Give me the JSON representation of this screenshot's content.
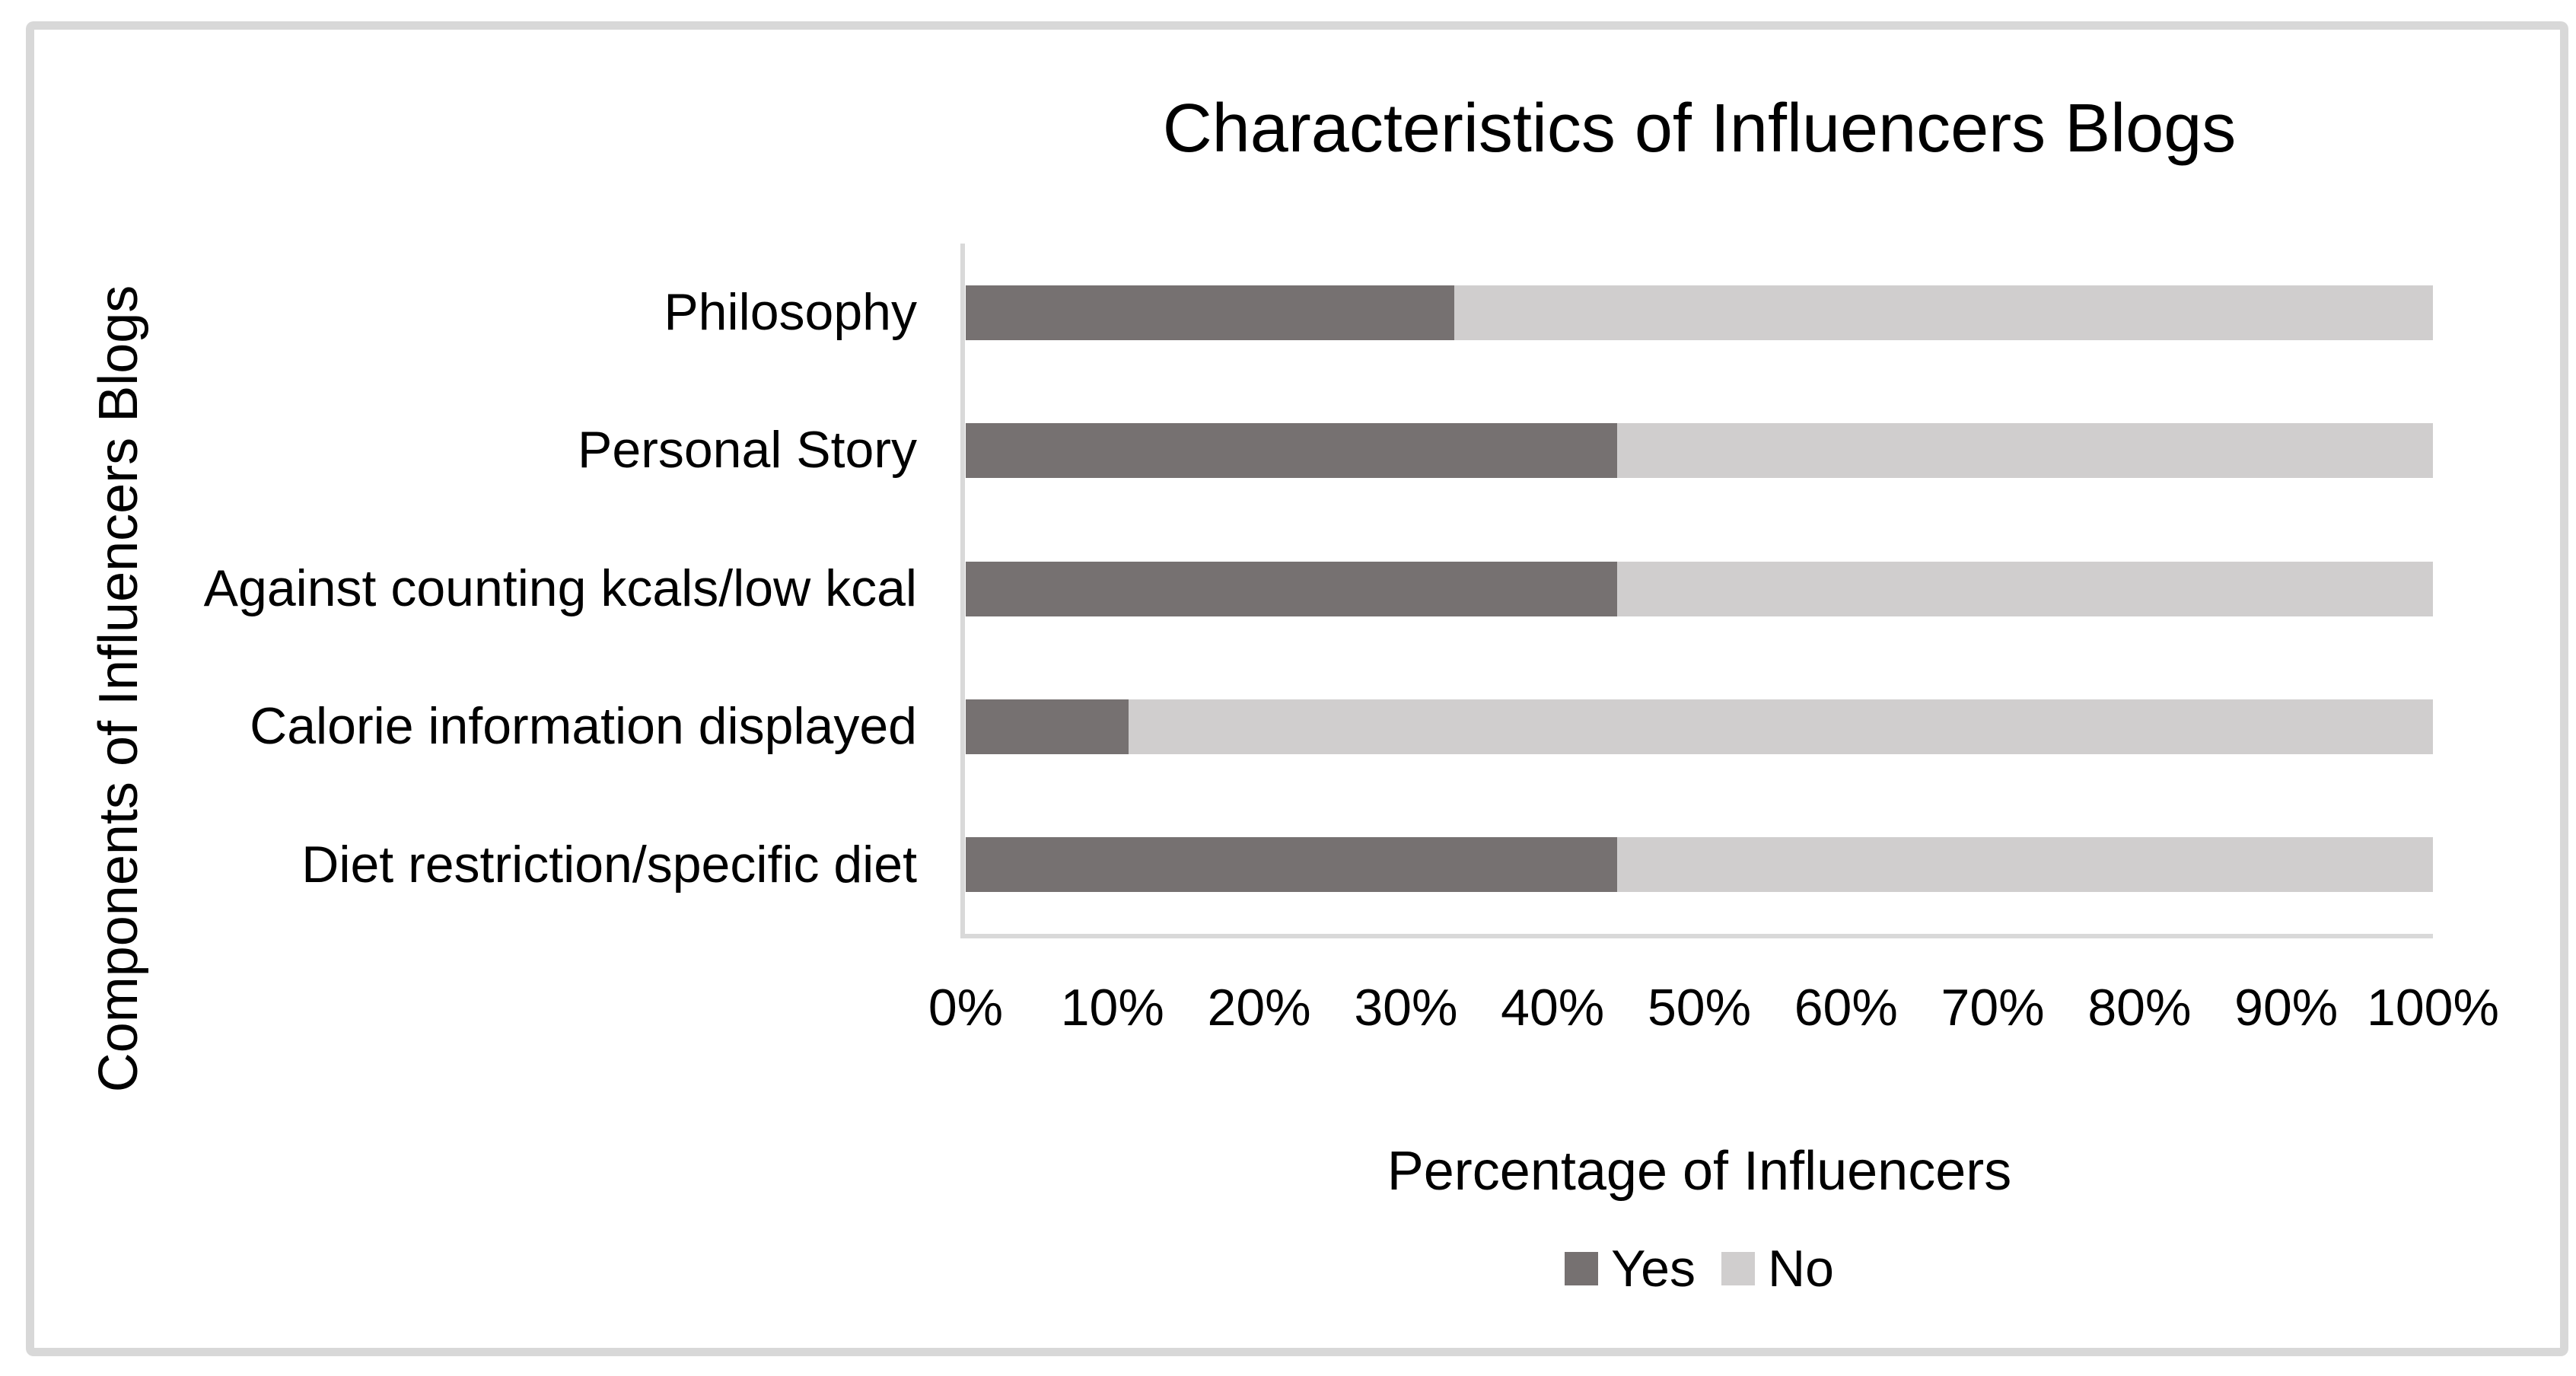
{
  "chart_data": {
    "type": "bar",
    "orientation": "horizontal",
    "stacked": true,
    "title": "Characteristics of Influencers Blogs",
    "xlabel": "Percentage of Influencers",
    "ylabel": "Components of Influencers Blogs",
    "categories": [
      "Philosophy",
      "Personal Story",
      "Against counting kcals/low kcal",
      "Calorie information displayed",
      "Diet restriction/specific diet"
    ],
    "series": [
      {
        "name": "Yes",
        "color": "#767171",
        "values": [
          33.3,
          44.4,
          44.4,
          11.1,
          44.4
        ]
      },
      {
        "name": "No",
        "color": "#d0cece",
        "values": [
          66.7,
          55.6,
          55.6,
          88.9,
          55.6
        ]
      }
    ],
    "xlim": [
      0,
      100
    ],
    "x_ticks": [
      "0%",
      "10%",
      "20%",
      "30%",
      "40%",
      "50%",
      "60%",
      "70%",
      "80%",
      "90%",
      "100%"
    ],
    "grid": false,
    "legend_position": "bottom"
  },
  "colors": {
    "yes_bar": "#767171",
    "no_bar": "#d0cece",
    "axis_line": "#d9d9d9",
    "chart_border": "#d8d8d8",
    "text": "#000000",
    "background": "#ffffff"
  }
}
